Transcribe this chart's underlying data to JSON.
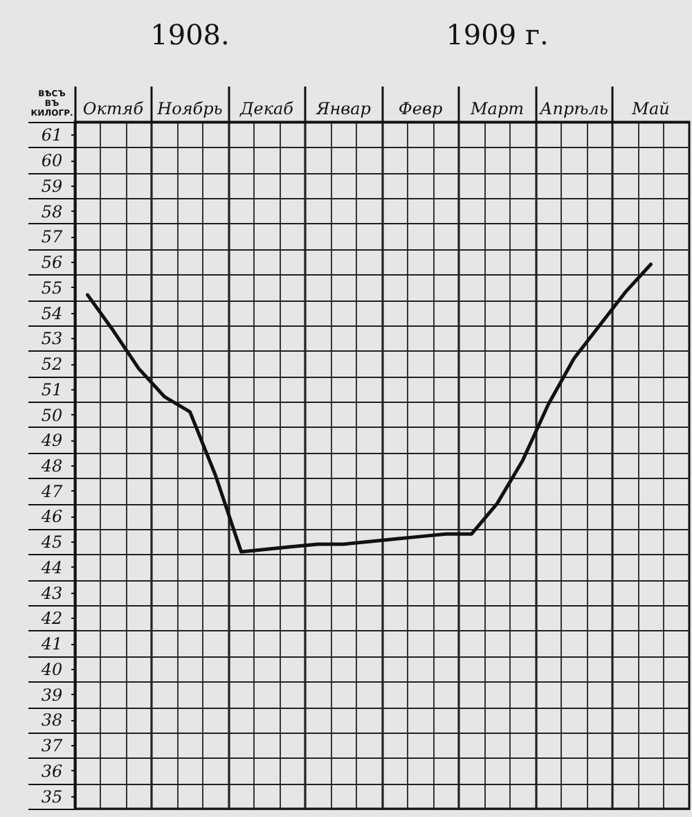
{
  "chart_data": {
    "type": "line",
    "ylabel": "ВѢСЪ ВЪ КИЛОГР.",
    "annotations": [
      "1908.",
      "1909 г."
    ],
    "categories": [
      null,
      "Октяб",
      null,
      null,
      "Ноябрь",
      null,
      null,
      "Декаб",
      null,
      null,
      "Январ",
      null,
      null,
      "Февр",
      null,
      null,
      "Март",
      null,
      null,
      "Апрѣль",
      null,
      null,
      "Май",
      null
    ],
    "series": [
      {
        "color": "#111111",
        "values": [
          54.7,
          53.3,
          51.8,
          50.7,
          50.1,
          47.6,
          44.6,
          44.7,
          44.8,
          44.9,
          44.9,
          45.0,
          45.1,
          45.2,
          45.3,
          45.3,
          46.5,
          48.2,
          50.4,
          52.2,
          53.5,
          54.8,
          55.9,
          null
        ]
      }
    ],
    "ylim": [
      34.5,
      61.5
    ],
    "yticks": [
      {
        "value": 34.5,
        "label": null
      },
      35,
      {
        "value": 35.5,
        "label": null
      },
      36,
      {
        "value": 36.5,
        "label": null
      },
      37,
      {
        "value": 37.5,
        "label": null
      },
      38,
      {
        "value": 38.5,
        "label": null
      },
      39,
      {
        "value": 39.5,
        "label": null
      },
      40,
      {
        "value": 40.5,
        "label": null
      },
      41,
      {
        "value": 41.5,
        "label": null
      },
      42,
      {
        "value": 42.5,
        "label": null
      },
      43,
      {
        "value": 43.5,
        "label": null
      },
      44,
      {
        "value": 44.5,
        "label": null
      },
      45,
      {
        "value": 45.5,
        "label": null
      },
      46,
      {
        "value": 46.5,
        "label": null
      },
      47,
      {
        "value": 47.5,
        "label": null
      },
      48,
      {
        "value": 48.5,
        "label": null
      },
      49,
      {
        "value": 49.5,
        "label": null
      },
      50,
      {
        "value": 50.5,
        "label": null
      },
      51,
      {
        "value": 51.5,
        "label": null
      },
      52,
      {
        "value": 52.5,
        "label": null
      },
      53,
      {
        "value": 53.5,
        "label": null
      },
      54,
      {
        "value": 54.5,
        "label": null
      },
      55,
      {
        "value": 55.5,
        "label": null
      },
      56,
      {
        "value": 56.5,
        "label": null
      },
      57,
      {
        "value": 57.5,
        "label": null
      },
      58,
      {
        "value": 58.5,
        "label": null
      },
      59,
      {
        "value": 59.5,
        "label": null
      },
      60,
      {
        "value": 60.5,
        "label": null
      },
      61,
      {
        "value": 61.5,
        "label": null
      }
    ],
    "grid": true
  }
}
